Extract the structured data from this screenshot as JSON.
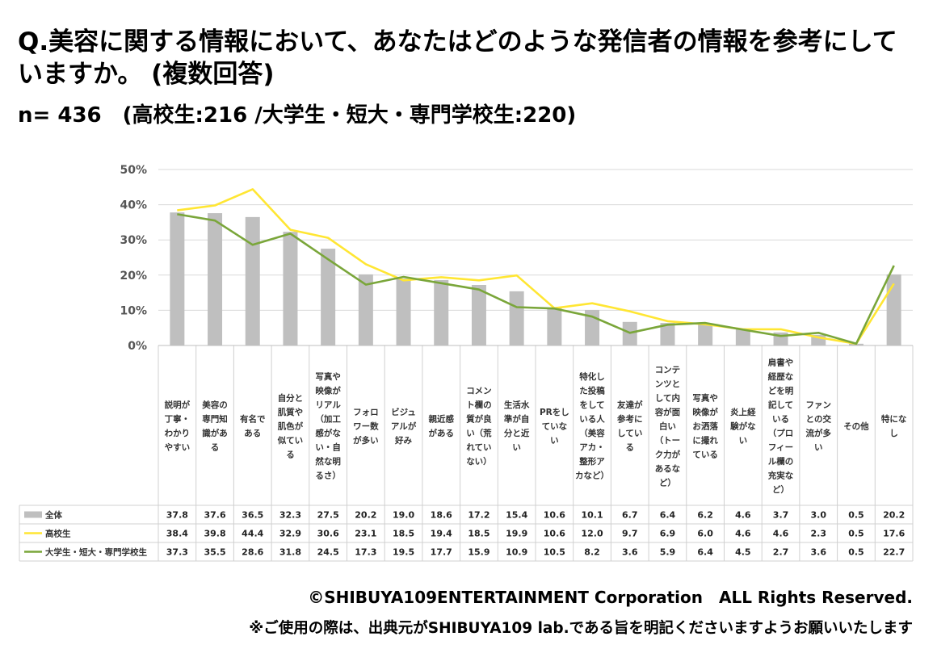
{
  "header": {
    "title": "Q.美容に関する情報において、あなたはどのような発信者の情報を参考にしていますか。 (複数回答)",
    "subtitle": "n= 436　(高校生:216 /大学生・短大・専門学校生:220)"
  },
  "footer": {
    "copyright": "©SHIBUYA109ENTERTAINMENT Corporation　ALL Rights Reserved.",
    "notice": "※ご使用の際は、出典元がSHIBUYA109 lab.である旨を明記くださいますようお願いいたします"
  },
  "chart_data": {
    "type": "bar",
    "ylim": [
      0,
      50
    ],
    "yticks": [
      "0%",
      "10%",
      "20%",
      "30%",
      "40%",
      "50%"
    ],
    "grid": true,
    "categories": [
      "説明が丁寧・わかりやすい",
      "美容の専門知識がある",
      "有名である",
      "自分と肌質や肌色が似ている",
      "写真や映像がリアル（加工感がない・自然な明るさ）",
      "フォロワー数が多い",
      "ビジュアルが好み",
      "親近感がある",
      "コメント欄の質が良い（荒れていない）",
      "生活水準が自分と近い",
      "PRをしていない",
      "特化した投稿をしている人（美容アカ・整形アカなど）",
      "友達が参考にしている",
      "コンテンツとして内容が面白い（トーク力があるなど）",
      "写真や映像がお洒落に撮れている",
      "炎上経験がない",
      "肩書や経歴などを明記している（プロフィール欄の充実など）",
      "ファンとの交流が多い",
      "その他",
      "特になし"
    ],
    "category_lines": [
      [
        "説明が",
        "丁寧・",
        "わかり",
        "やすい"
      ],
      [
        "美容の",
        "専門知",
        "識があ",
        "る"
      ],
      [
        "有名で",
        "ある"
      ],
      [
        "自分と",
        "肌質や",
        "肌色が",
        "似てい",
        "る"
      ],
      [
        "写真や",
        "映像が",
        "リアル",
        "（加工",
        "感がな",
        "い・自",
        "然な明",
        "るさ）"
      ],
      [
        "フォロ",
        "ワー数",
        "が多い"
      ],
      [
        "ビジュ",
        "アルが",
        "好み"
      ],
      [
        "親近感",
        "がある"
      ],
      [
        "コメン",
        "ト欄の",
        "質が良",
        "い（荒",
        "れてい",
        "ない）"
      ],
      [
        "生活水",
        "準が自",
        "分と近",
        "い"
      ],
      [
        "PRをし",
        "ていな",
        "い"
      ],
      [
        "特化し",
        "た投稿",
        "をして",
        "いる人",
        "（美容",
        "アカ・",
        "整形ア",
        "カなど）"
      ],
      [
        "友達が",
        "参考に",
        "してい",
        "る"
      ],
      [
        "コンテ",
        "ンツと",
        "して内",
        "容が面",
        "白い",
        "（トー",
        "ク力が",
        "あるな",
        "ど）"
      ],
      [
        "写真や",
        "映像が",
        "お洒落",
        "に撮れ",
        "ている"
      ],
      [
        "炎上経",
        "験がな",
        "い"
      ],
      [
        "肩書や",
        "経歴な",
        "どを明",
        "記して",
        "いる",
        "（プロ",
        "フィー",
        "ル欄の",
        "充実な",
        "ど）"
      ],
      [
        "ファン",
        "との交",
        "流が多",
        "い"
      ],
      [
        "その他"
      ],
      [
        "特にな",
        "し"
      ]
    ],
    "series": [
      {
        "name": "全体",
        "type": "bar",
        "color": "#bfbfbf",
        "values": [
          37.8,
          37.6,
          36.5,
          32.3,
          27.5,
          20.2,
          19.0,
          18.6,
          17.2,
          15.4,
          10.6,
          10.1,
          6.7,
          6.4,
          6.2,
          4.6,
          3.7,
          3.0,
          0.5,
          20.2
        ],
        "labels": [
          "37.8",
          "37.6",
          "36.5",
          "32.3",
          "27.5",
          "20.2",
          "19.0",
          "18.6",
          "17.2",
          "15.4",
          "10.6",
          "10.1",
          "6.7",
          "6.4",
          "6.2",
          "4.6",
          "3.7",
          "3.0",
          "0.5",
          "20.2"
        ]
      },
      {
        "name": "高校生",
        "type": "line",
        "color": "#ffe633",
        "values": [
          38.4,
          39.8,
          44.4,
          32.9,
          30.6,
          23.1,
          18.5,
          19.4,
          18.5,
          19.9,
          10.6,
          12.0,
          9.7,
          6.9,
          6.0,
          4.6,
          4.6,
          2.3,
          0.5,
          17.6
        ],
        "labels": [
          "38.4",
          "39.8",
          "44.4",
          "32.9",
          "30.6",
          "23.1",
          "18.5",
          "19.4",
          "18.5",
          "19.9",
          "10.6",
          "12.0",
          "9.7",
          "6.9",
          "6.0",
          "4.6",
          "4.6",
          "2.3",
          "0.5",
          "17.6"
        ]
      },
      {
        "name": "大学生・短大・専門学校生",
        "type": "line",
        "color": "#7aa63a",
        "values": [
          37.3,
          35.5,
          28.6,
          31.8,
          24.5,
          17.3,
          19.5,
          17.7,
          15.9,
          10.9,
          10.5,
          8.2,
          3.6,
          5.9,
          6.4,
          4.5,
          2.7,
          3.6,
          0.5,
          22.7
        ],
        "labels": [
          "37.3",
          "35.5",
          "28.6",
          "31.8",
          "24.5",
          "17.3",
          "19.5",
          "17.7",
          "15.9",
          "10.9",
          "10.5",
          "8.2",
          "3.6",
          "5.9",
          "6.4",
          "4.5",
          "2.7",
          "3.6",
          "0.5",
          "22.7"
        ]
      }
    ]
  }
}
